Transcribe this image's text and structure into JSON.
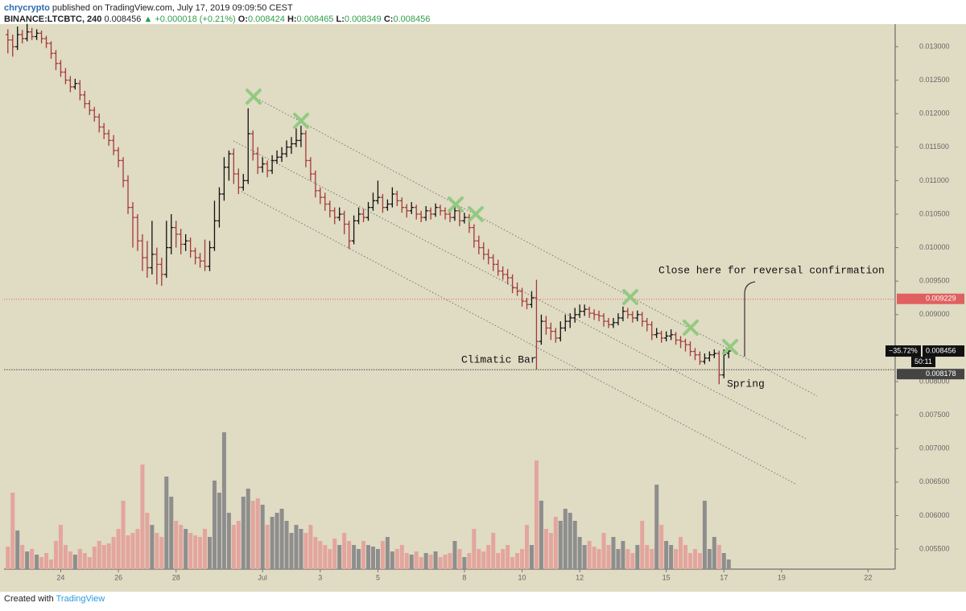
{
  "header": {
    "author": "chrycrypto",
    "published": "published on TradingView.com, July 17, 2019 09:09:50 CEST",
    "symbol": "BINANCE:LTCBTC, 240",
    "change": "▲ +0.000018 (+0.21%)"
  },
  "chart_data": {
    "type": "ohlc",
    "ohlc_labels": [
      "O:",
      "H:",
      "L:",
      "C:"
    ],
    "ohlc": [
      [
        0.01318,
        0.01326,
        0.0129,
        0.0131
      ],
      [
        0.0131,
        0.01318,
        0.01285,
        0.013
      ],
      [
        0.013,
        0.0133,
        0.01295,
        0.01318
      ],
      [
        0.01318,
        0.01325,
        0.01305,
        0.01312
      ],
      [
        0.01312,
        0.01334,
        0.01308,
        0.01322
      ],
      [
        0.01322,
        0.01328,
        0.0131,
        0.01315
      ],
      [
        0.01315,
        0.01326,
        0.0131,
        0.0132
      ],
      [
        0.0132,
        0.01324,
        0.01305,
        0.01312
      ],
      [
        0.01312,
        0.01316,
        0.01298,
        0.01305
      ],
      [
        0.01305,
        0.01308,
        0.01282,
        0.0129
      ],
      [
        0.0129,
        0.01295,
        0.01265,
        0.01275
      ],
      [
        0.01275,
        0.0128,
        0.01255,
        0.01262
      ],
      [
        0.01262,
        0.01268,
        0.01244,
        0.0125
      ],
      [
        0.0125,
        0.01256,
        0.01232,
        0.0124
      ],
      [
        0.0124,
        0.01252,
        0.01236,
        0.01245
      ],
      [
        0.01245,
        0.0125,
        0.0122,
        0.01228
      ],
      [
        0.01228,
        0.01234,
        0.01208,
        0.01215
      ],
      [
        0.01215,
        0.0122,
        0.01198,
        0.01205
      ],
      [
        0.01205,
        0.0121,
        0.01188,
        0.01195
      ],
      [
        0.01195,
        0.012,
        0.01172,
        0.0118
      ],
      [
        0.0118,
        0.01186,
        0.01162,
        0.0117
      ],
      [
        0.0117,
        0.01176,
        0.01152,
        0.0116
      ],
      [
        0.0116,
        0.01168,
        0.01138,
        0.01145
      ],
      [
        0.01145,
        0.0115,
        0.0112,
        0.0113
      ],
      [
        0.0113,
        0.01135,
        0.0109,
        0.011
      ],
      [
        0.011,
        0.01108,
        0.0105,
        0.0106
      ],
      [
        0.0106,
        0.01068,
        0.01,
        0.01045
      ],
      [
        0.01045,
        0.0105,
        0.00995,
        0.0101
      ],
      [
        0.0101,
        0.0102,
        0.00965,
        0.00985
      ],
      [
        0.00985,
        0.0101,
        0.00955,
        0.0097
      ],
      [
        0.0097,
        0.0104,
        0.0096,
        0.0099
      ],
      [
        0.0099,
        0.01,
        0.00945,
        0.00975
      ],
      [
        0.00975,
        0.00985,
        0.00943,
        0.0096
      ],
      [
        0.0096,
        0.0104,
        0.00955,
        0.01
      ],
      [
        0.01,
        0.0105,
        0.0099,
        0.0103
      ],
      [
        0.0103,
        0.0104,
        0.01,
        0.0102
      ],
      [
        0.0102,
        0.01028,
        0.0099,
        0.01005
      ],
      [
        0.01005,
        0.0102,
        0.00995,
        0.0101
      ],
      [
        0.0101,
        0.01015,
        0.00985,
        0.00995
      ],
      [
        0.00995,
        0.01,
        0.00975,
        0.00985
      ],
      [
        0.00985,
        0.00992,
        0.0097,
        0.0098
      ],
      [
        0.0098,
        0.01012,
        0.00965,
        0.00972
      ],
      [
        0.00972,
        0.0101,
        0.00965,
        0.01
      ],
      [
        0.01,
        0.0107,
        0.00995,
        0.0104
      ],
      [
        0.0104,
        0.0109,
        0.0103,
        0.0108
      ],
      [
        0.0108,
        0.01135,
        0.0107,
        0.0112
      ],
      [
        0.0112,
        0.01145,
        0.011,
        0.0114
      ],
      [
        0.0114,
        0.01148,
        0.01095,
        0.0111
      ],
      [
        0.0111,
        0.01118,
        0.0108,
        0.0109
      ],
      [
        0.0109,
        0.0111,
        0.01085,
        0.011
      ],
      [
        0.011,
        0.01208,
        0.01095,
        0.0117
      ],
      [
        0.0117,
        0.01175,
        0.0113,
        0.0114
      ],
      [
        0.0114,
        0.0115,
        0.0111,
        0.0112
      ],
      [
        0.0112,
        0.01135,
        0.01112,
        0.01125
      ],
      [
        0.01125,
        0.0113,
        0.01105,
        0.01115
      ],
      [
        0.01115,
        0.01138,
        0.0111,
        0.0113
      ],
      [
        0.0113,
        0.01145,
        0.01125,
        0.01135
      ],
      [
        0.01135,
        0.0115,
        0.01128,
        0.0114
      ],
      [
        0.0114,
        0.0116,
        0.01135,
        0.0115
      ],
      [
        0.0115,
        0.01165,
        0.0114,
        0.01155
      ],
      [
        0.01155,
        0.01178,
        0.0115,
        0.0116
      ],
      [
        0.0116,
        0.01182,
        0.0115,
        0.0117
      ],
      [
        0.0117,
        0.01175,
        0.0112,
        0.0113
      ],
      [
        0.0113,
        0.01135,
        0.011,
        0.0111
      ],
      [
        0.0111,
        0.01115,
        0.01075,
        0.01085
      ],
      [
        0.01085,
        0.0109,
        0.01065,
        0.01075
      ],
      [
        0.01075,
        0.01082,
        0.01055,
        0.01065
      ],
      [
        0.01065,
        0.0107,
        0.01045,
        0.01055
      ],
      [
        0.01055,
        0.0106,
        0.01035,
        0.01045
      ],
      [
        0.01045,
        0.0106,
        0.0104,
        0.0105
      ],
      [
        0.0105,
        0.01055,
        0.0102,
        0.01035
      ],
      [
        0.01035,
        0.0104,
        0.00998,
        0.0101
      ],
      [
        0.0101,
        0.01048,
        0.01005,
        0.0104
      ],
      [
        0.0104,
        0.0106,
        0.01035,
        0.0105
      ],
      [
        0.0105,
        0.01058,
        0.01038,
        0.01045
      ],
      [
        0.01045,
        0.01068,
        0.0104,
        0.0106
      ],
      [
        0.0106,
        0.01082,
        0.01055,
        0.0107
      ],
      [
        0.0107,
        0.011,
        0.01065,
        0.01075
      ],
      [
        0.01075,
        0.0108,
        0.01052,
        0.0106
      ],
      [
        0.0106,
        0.01072,
        0.01055,
        0.01065
      ],
      [
        0.01065,
        0.0109,
        0.0106,
        0.0108
      ],
      [
        0.0108,
        0.01085,
        0.01062,
        0.0107
      ],
      [
        0.0107,
        0.01075,
        0.01052,
        0.0106
      ],
      [
        0.0106,
        0.01065,
        0.01045,
        0.01055
      ],
      [
        0.01055,
        0.01068,
        0.0105,
        0.0106
      ],
      [
        0.0106,
        0.01064,
        0.01042,
        0.0105
      ],
      [
        0.0105,
        0.01055,
        0.01038,
        0.01045
      ],
      [
        0.01045,
        0.01062,
        0.0104,
        0.01055
      ],
      [
        0.01055,
        0.0106,
        0.01042,
        0.0105
      ],
      [
        0.0105,
        0.01066,
        0.01046,
        0.0106
      ],
      [
        0.0106,
        0.01064,
        0.01048,
        0.01055
      ],
      [
        0.01055,
        0.0106,
        0.01042,
        0.0105
      ],
      [
        0.0105,
        0.01058,
        0.01038,
        0.01045
      ],
      [
        0.01045,
        0.01062,
        0.0104,
        0.01055
      ],
      [
        0.01055,
        0.0106,
        0.01032,
        0.0104
      ],
      [
        0.0104,
        0.01052,
        0.01036,
        0.01045
      ],
      [
        0.01045,
        0.0105,
        0.01022,
        0.0103
      ],
      [
        0.0103,
        0.01035,
        0.01,
        0.0101
      ],
      [
        0.0101,
        0.01018,
        0.0099,
        0.01
      ],
      [
        0.01,
        0.01008,
        0.00982,
        0.0099
      ],
      [
        0.0099,
        0.00998,
        0.00975,
        0.00985
      ],
      [
        0.00985,
        0.0099,
        0.00965,
        0.00975
      ],
      [
        0.00975,
        0.00982,
        0.00958,
        0.00965
      ],
      [
        0.00965,
        0.00972,
        0.00952,
        0.0096
      ],
      [
        0.0096,
        0.00968,
        0.00945,
        0.00955
      ],
      [
        0.00955,
        0.0096,
        0.00932,
        0.0094
      ],
      [
        0.0094,
        0.00948,
        0.00928,
        0.00935
      ],
      [
        0.00935,
        0.0094,
        0.00912,
        0.0092
      ],
      [
        0.0092,
        0.00925,
        0.00908,
        0.00915
      ],
      [
        0.00915,
        0.00935,
        0.0091,
        0.00925
      ],
      [
        0.00925,
        0.00952,
        0.00818,
        0.0086
      ],
      [
        0.0086,
        0.009,
        0.00855,
        0.0089
      ],
      [
        0.0089,
        0.00898,
        0.0087,
        0.0088
      ],
      [
        0.0088,
        0.00888,
        0.00862,
        0.00875
      ],
      [
        0.00875,
        0.0088,
        0.00858,
        0.00865
      ],
      [
        0.00865,
        0.0089,
        0.0086,
        0.0088
      ],
      [
        0.0088,
        0.009,
        0.00875,
        0.0089
      ],
      [
        0.0089,
        0.00902,
        0.0088,
        0.00895
      ],
      [
        0.00895,
        0.0091,
        0.00888,
        0.009
      ],
      [
        0.009,
        0.00915,
        0.00895,
        0.00905
      ],
      [
        0.00905,
        0.00915,
        0.00898,
        0.00908
      ],
      [
        0.00908,
        0.00912,
        0.00895,
        0.00902
      ],
      [
        0.00902,
        0.00908,
        0.00892,
        0.009
      ],
      [
        0.009,
        0.00906,
        0.0089,
        0.00898
      ],
      [
        0.00898,
        0.00902,
        0.00882,
        0.0089
      ],
      [
        0.0089,
        0.00895,
        0.0088,
        0.00885
      ],
      [
        0.00885,
        0.00895,
        0.0088,
        0.00888
      ],
      [
        0.00888,
        0.00902,
        0.00884,
        0.00895
      ],
      [
        0.00895,
        0.00912,
        0.0089,
        0.00905
      ],
      [
        0.00905,
        0.0091,
        0.00894,
        0.009
      ],
      [
        0.009,
        0.00905,
        0.00888,
        0.00895
      ],
      [
        0.00895,
        0.00906,
        0.0089,
        0.009
      ],
      [
        0.009,
        0.00904,
        0.00882,
        0.0089
      ],
      [
        0.0089,
        0.00895,
        0.00875,
        0.00885
      ],
      [
        0.00885,
        0.0089,
        0.00862,
        0.0087
      ],
      [
        0.0087,
        0.0088,
        0.00865,
        0.00872
      ],
      [
        0.00872,
        0.00876,
        0.00858,
        0.00865
      ],
      [
        0.00865,
        0.00875,
        0.0086,
        0.00868
      ],
      [
        0.00868,
        0.00878,
        0.00862,
        0.0087
      ],
      [
        0.0087,
        0.00874,
        0.00855,
        0.00862
      ],
      [
        0.00862,
        0.00868,
        0.0085,
        0.0086
      ],
      [
        0.0086,
        0.00864,
        0.00845,
        0.00855
      ],
      [
        0.00855,
        0.0086,
        0.00838,
        0.00845
      ],
      [
        0.00845,
        0.0085,
        0.00832,
        0.0084
      ],
      [
        0.0084,
        0.00845,
        0.00825,
        0.0083
      ],
      [
        0.0083,
        0.00842,
        0.00826,
        0.00835
      ],
      [
        0.00835,
        0.00845,
        0.0083,
        0.0084
      ],
      [
        0.0084,
        0.00848,
        0.00835,
        0.00842
      ],
      [
        0.00842,
        0.00846,
        0.00796,
        0.0081
      ],
      [
        0.0081,
        0.00848,
        0.00805,
        0.0084
      ],
      [
        0.008424,
        0.008465,
        0.008349,
        0.008456
      ]
    ],
    "volume": [
      28,
      95,
      48,
      30,
      22,
      25,
      18,
      15,
      20,
      12,
      35,
      55,
      30,
      22,
      18,
      25,
      20,
      15,
      28,
      35,
      30,
      32,
      40,
      50,
      85,
      42,
      45,
      50,
      130,
      70,
      55,
      45,
      40,
      115,
      90,
      60,
      55,
      50,
      45,
      42,
      40,
      50,
      40,
      110,
      95,
      170,
      70,
      55,
      60,
      90,
      100,
      85,
      88,
      80,
      55,
      65,
      70,
      75,
      60,
      45,
      55,
      50,
      45,
      55,
      40,
      35,
      30,
      25,
      38,
      30,
      45,
      35,
      30,
      25,
      35,
      30,
      28,
      25,
      35,
      40,
      22,
      25,
      30,
      20,
      18,
      22,
      15,
      20,
      18,
      22,
      15,
      18,
      20,
      35,
      25,
      15,
      20,
      50,
      25,
      22,
      30,
      45,
      20,
      25,
      30,
      15,
      20,
      25,
      55,
      30,
      135,
      85,
      50,
      45,
      65,
      60,
      75,
      70,
      60,
      40,
      30,
      35,
      28,
      25,
      45,
      30,
      40,
      25,
      35,
      25,
      20,
      30,
      60,
      30,
      25,
      105,
      55,
      35,
      30,
      25,
      40,
      30,
      20,
      25,
      20,
      85,
      25,
      40,
      30,
      20,
      12
    ],
    "up_color": "#111111",
    "down_color": "#a23a3a",
    "volume_up_color": "#8e8e8e",
    "volume_down_color": "#e3a59d",
    "xlim": [
      -0.8,
      184.3
    ],
    "xticks": [
      {
        "value": 11,
        "label": "24"
      },
      {
        "value": 23,
        "label": "26"
      },
      {
        "value": 35,
        "label": "28"
      },
      {
        "value": 53,
        "label": "Jul"
      },
      {
        "value": 65,
        "label": "3"
      },
      {
        "value": 77,
        "label": "5"
      },
      {
        "value": 95,
        "label": "8"
      },
      {
        "value": 107,
        "label": "10"
      },
      {
        "value": 119,
        "label": "12"
      },
      {
        "value": 137,
        "label": "15"
      },
      {
        "value": 149,
        "label": "17"
      },
      {
        "value": 161,
        "label": "19"
      },
      {
        "value": 179,
        "label": "22"
      }
    ],
    "ylim": [
      0.0052,
      0.013336
    ],
    "yticks": [
      {
        "value": 0.013,
        "label": "0.013000"
      },
      {
        "value": 0.0125,
        "label": "0.012500"
      },
      {
        "value": 0.012,
        "label": "0.012000"
      },
      {
        "value": 0.0115,
        "label": "0.011500"
      },
      {
        "value": 0.011,
        "label": "0.011000"
      },
      {
        "value": 0.0105,
        "label": "0.010500"
      },
      {
        "value": 0.01,
        "label": "0.010000"
      },
      {
        "value": 0.0095,
        "label": "0.009500"
      },
      {
        "value": 0.009,
        "label": "0.009000"
      },
      {
        "value": 0.008,
        "label": "0.008000"
      },
      {
        "value": 0.0075,
        "label": "0.007500"
      },
      {
        "value": 0.007,
        "label": "0.007000"
      },
      {
        "value": 0.0065,
        "label": "0.006500"
      },
      {
        "value": 0.006,
        "label": "0.006000"
      },
      {
        "value": 0.0055,
        "label": "0.005500"
      }
    ],
    "levels": [
      {
        "value": 0.009229,
        "color": "#e06060"
      },
      {
        "value": 0.008178,
        "color": "#444444"
      }
    ],
    "last_change_label": "−35.72%",
    "countdown": "50:11",
    "annotations": [
      {
        "text": "Close here for reversal confirmation"
      },
      {
        "text": "Climatic Bar"
      },
      {
        "text": "Spring"
      }
    ]
  },
  "footer": {
    "created": "Created with",
    "brand": "TradingView"
  }
}
